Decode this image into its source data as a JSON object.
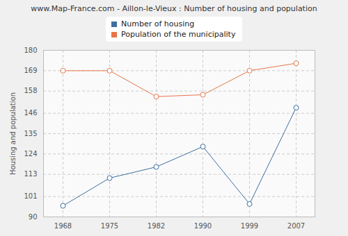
{
  "chart_data": {
    "type": "line",
    "title": "www.Map-France.com - Aillon-le-Vieux : Number of housing and population",
    "y_label": "Housing and population",
    "x": [
      1968,
      1975,
      1982,
      1990,
      1999,
      2007
    ],
    "series": [
      {
        "name": "Number of housing",
        "color": "#3e6fa0",
        "values": [
          96,
          111,
          117,
          128,
          97,
          149
        ],
        "marker": "circle"
      },
      {
        "name": "Population of the municipality",
        "color": "#e8754a",
        "values": [
          169,
          169,
          155,
          156,
          169,
          173
        ],
        "marker": "circle"
      }
    ],
    "ylim": [
      90,
      180
    ],
    "yticks": [
      90,
      101,
      113,
      124,
      135,
      146,
      158,
      169,
      180
    ],
    "grid": true,
    "legend": "top"
  }
}
